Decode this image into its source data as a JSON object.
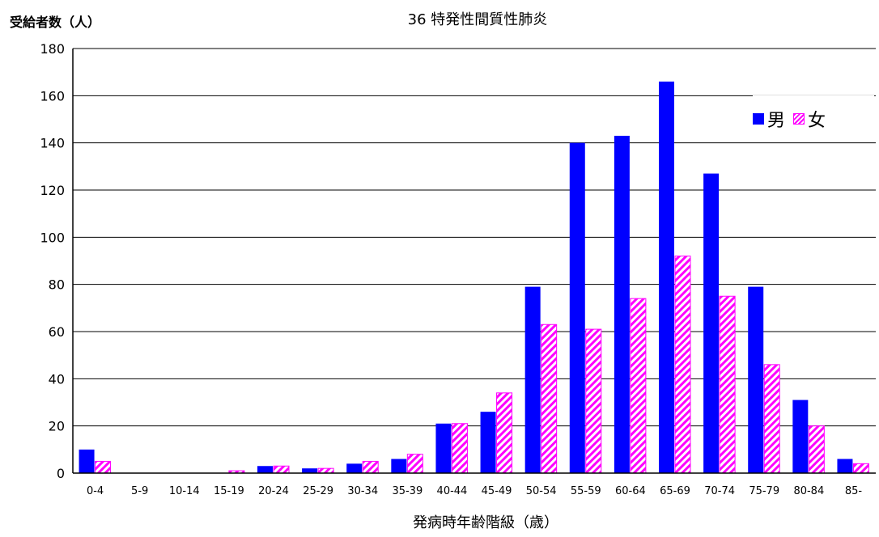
{
  "chart_data": {
    "type": "bar",
    "title": "36 特発性間質性肺炎",
    "xlabel": "発病時年齢階級（歳）",
    "ylabel": "受給者数（人）",
    "ylim": [
      0,
      180
    ],
    "yticks": [
      0,
      20,
      40,
      60,
      80,
      100,
      120,
      140,
      160,
      180
    ],
    "grid": true,
    "legend_position": "top-right",
    "categories": [
      "0-4",
      "5-9",
      "10-14",
      "15-19",
      "20-24",
      "25-29",
      "30-34",
      "35-39",
      "40-44",
      "45-49",
      "50-54",
      "55-59",
      "60-64",
      "65-69",
      "70-74",
      "75-79",
      "80-84",
      "85-"
    ],
    "series": [
      {
        "name": "男",
        "color": "#0000ff",
        "values": [
          10,
          0,
          0,
          0,
          3,
          2,
          4,
          6,
          21,
          26,
          79,
          140,
          143,
          166,
          127,
          79,
          31,
          6
        ]
      },
      {
        "name": "女",
        "color": "#ff00ff",
        "values": [
          5,
          0,
          0,
          1,
          3,
          2,
          5,
          8,
          21,
          34,
          63,
          61,
          74,
          92,
          75,
          46,
          20,
          4
        ]
      }
    ]
  }
}
